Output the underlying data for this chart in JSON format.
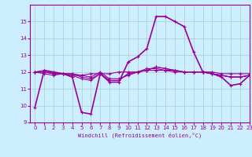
{
  "series": [
    [
      9.9,
      12.1,
      12.0,
      11.9,
      11.7,
      9.6,
      9.5,
      11.9,
      11.4,
      11.4,
      12.6,
      12.9,
      13.4,
      15.3,
      15.3,
      15.0,
      14.7,
      13.2,
      12.0,
      11.9,
      11.7,
      11.2,
      11.3,
      11.8
    ],
    [
      12.0,
      12.1,
      11.9,
      11.9,
      11.8,
      11.8,
      11.9,
      11.9,
      11.9,
      12.0,
      12.0,
      12.0,
      12.1,
      12.1,
      12.1,
      12.0,
      12.0,
      12.0,
      12.0,
      12.0,
      11.9,
      11.9,
      11.9,
      11.9
    ],
    [
      12.0,
      11.9,
      11.8,
      11.9,
      11.9,
      11.8,
      11.7,
      12.0,
      11.6,
      11.6,
      11.8,
      12.0,
      12.2,
      12.2,
      12.1,
      12.1,
      12.0,
      12.0,
      12.0,
      11.9,
      11.8,
      11.7,
      11.7,
      11.8
    ],
    [
      12.0,
      12.0,
      11.9,
      11.9,
      11.9,
      11.7,
      11.6,
      11.9,
      11.5,
      11.5,
      11.9,
      12.0,
      12.1,
      12.3,
      12.2,
      12.1,
      12.0,
      12.0,
      12.0,
      11.9,
      11.8,
      11.7,
      11.7,
      11.8
    ],
    [
      12.0,
      12.0,
      11.9,
      11.9,
      11.8,
      11.6,
      11.5,
      11.9,
      11.5,
      11.5,
      11.9,
      12.0,
      12.1,
      12.3,
      12.2,
      12.1,
      12.0,
      12.0,
      12.0,
      11.9,
      11.8,
      11.7,
      11.7,
      11.8
    ]
  ],
  "x": [
    0,
    1,
    2,
    3,
    4,
    5,
    6,
    7,
    8,
    9,
    10,
    11,
    12,
    13,
    14,
    15,
    16,
    17,
    18,
    19,
    20,
    21,
    22,
    23
  ],
  "line_color": "#990099",
  "bg_color": "#cceeff",
  "grid_color": "#aacccc",
  "text_color": "#990099",
  "xlabel": "Windchill (Refroidissement éolien,°C)",
  "ylim": [
    9,
    16
  ],
  "xlim": [
    -0.5,
    23
  ],
  "yticks": [
    9,
    10,
    11,
    12,
    13,
    14,
    15
  ],
  "xticks": [
    0,
    1,
    2,
    3,
    4,
    5,
    6,
    7,
    8,
    9,
    10,
    11,
    12,
    13,
    14,
    15,
    16,
    17,
    18,
    19,
    20,
    21,
    22,
    23
  ]
}
